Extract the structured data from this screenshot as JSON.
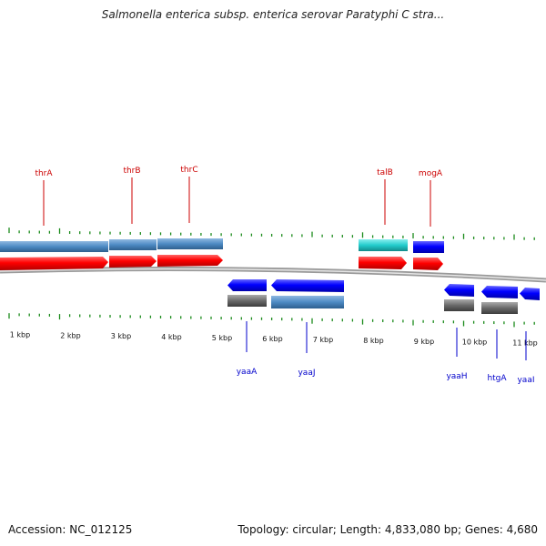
{
  "title": "Salmonella enterica subsp. enterica serovar Paratyphi C stra...",
  "footer": {
    "accession": "Accession: NC_012125",
    "summary": "Topology: circular; Length: 4,833,080 bp; Genes: 4,680"
  },
  "colors": {
    "forward_label": "#cc0000",
    "reverse_label": "#0000cc",
    "cds": "#ff0000",
    "cds_reverse": "#0000ff",
    "gene_track": "#4d8ac4",
    "cyan_gene": "#22cccc",
    "gray_gene": "#666666",
    "ticks": "#1a8a1a",
    "backbone": "#808080"
  },
  "scale_kbp": [
    {
      "kbp": 1,
      "label": "1 kbp"
    },
    {
      "kbp": 2,
      "label": "2 kbp"
    },
    {
      "kbp": 3,
      "label": "3 kbp"
    },
    {
      "kbp": 4,
      "label": "4 kbp"
    },
    {
      "kbp": 5,
      "label": "5 kbp"
    },
    {
      "kbp": 6,
      "label": "6 kbp"
    },
    {
      "kbp": 7,
      "label": "7 kbp"
    },
    {
      "kbp": 8,
      "label": "8 kbp"
    },
    {
      "kbp": 9,
      "label": "9 kbp"
    },
    {
      "kbp": 10,
      "label": "10 kbp"
    },
    {
      "kbp": 11,
      "label": "11 kbp"
    }
  ],
  "forward_genes": [
    {
      "name": "thrA",
      "start_kbp": 0.0,
      "end_kbp": 2.1
    },
    {
      "name": "thrB",
      "start_kbp": 2.2,
      "end_kbp": 3.1
    },
    {
      "name": "thrC",
      "start_kbp": 3.15,
      "end_kbp": 4.45
    },
    {
      "name": "talB",
      "start_kbp": 7.55,
      "end_kbp": 8.5
    },
    {
      "name": "mogA",
      "start_kbp": 8.6,
      "end_kbp": 9.2
    }
  ],
  "reverse_genes": [
    {
      "name": "yaaA",
      "start_kbp": 4.6,
      "end_kbp": 5.35
    },
    {
      "name": "yaaJ",
      "start_kbp": 5.45,
      "end_kbp": 6.9
    },
    {
      "name": "yaaH",
      "start_kbp": 9.7,
      "end_kbp": 10.25
    },
    {
      "name": "htgA",
      "start_kbp": 10.4,
      "end_kbp": 11.1
    },
    {
      "name": "yaaI",
      "start_kbp": 11.2,
      "end_kbp": 11.6
    }
  ]
}
